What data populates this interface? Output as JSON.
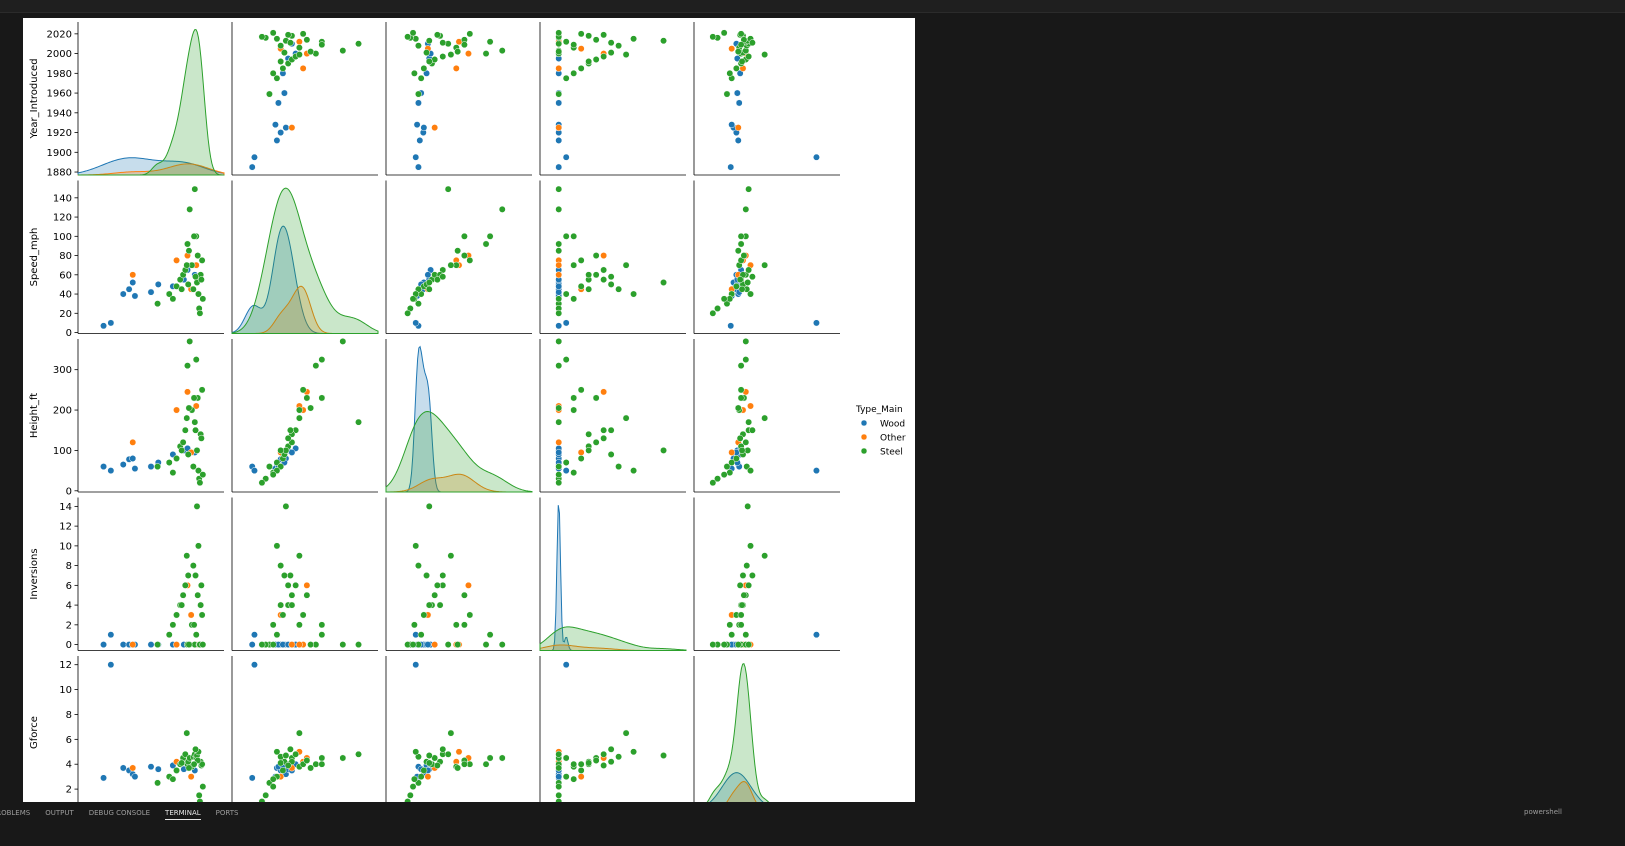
{
  "chart_data": {
    "type": "pairplot",
    "legend_title": "Type_Main",
    "axes": [
      {
        "label": "Year_Introduced",
        "xlim": [
          1850,
          2050
        ],
        "ylim": [
          1877,
          2032
        ],
        "yticks": [
          1880,
          1900,
          1920,
          1940,
          1960,
          1980,
          2000,
          2020
        ]
      },
      {
        "label": "Speed_mph",
        "xlim": [
          -20,
          175
        ],
        "ylim": [
          -1,
          158
        ],
        "yticks": [
          0,
          20,
          40,
          60,
          80,
          100,
          120,
          140
        ]
      },
      {
        "label": "Height_ft",
        "xlim": [
          -60,
          480
        ],
        "ylim": [
          -3,
          376
        ],
        "yticks": [
          0,
          100,
          200,
          300
        ]
      },
      {
        "label": "Inversions",
        "xlim": [
          -2.5,
          17
        ],
        "ylim": [
          -0.6,
          14.9
        ],
        "yticks": [
          0,
          2,
          4,
          6,
          8,
          10,
          12,
          14
        ]
      },
      {
        "label": "Gforce",
        "xlim": [
          -1,
          14.5
        ],
        "ylim": [
          0.4,
          12.7
        ],
        "yticks": [
          2,
          4,
          6,
          8,
          10,
          12
        ]
      }
    ],
    "series": [
      {
        "name": "Wood",
        "color": "#1f77b4",
        "values": [
          [
            1885,
            7,
            60,
            0,
            2.9
          ],
          [
            1895,
            10,
            50,
            1,
            12
          ],
          [
            1912,
            40,
            65,
            0,
            3.7
          ],
          [
            1920,
            45,
            78,
            0,
            3.5
          ],
          [
            1925,
            52,
            80,
            0,
            3.2
          ],
          [
            1928,
            38,
            55,
            0,
            3.0
          ],
          [
            1950,
            42,
            60,
            0,
            3.8
          ],
          [
            1960,
            50,
            70,
            0,
            3.6
          ],
          [
            1980,
            48,
            90,
            0,
            3.9
          ],
          [
            1995,
            55,
            100,
            0,
            3.6
          ],
          [
            2000,
            65,
            105,
            0,
            4.0
          ],
          [
            2010,
            60,
            95,
            0,
            3.5
          ]
        ]
      },
      {
        "name": "Other",
        "color": "#ff7f0e",
        "values": [
          [
            1925,
            60,
            120,
            0,
            3.7
          ],
          [
            1985,
            75,
            200,
            0,
            4.2
          ],
          [
            2000,
            80,
            245,
            6,
            4.5
          ],
          [
            2005,
            45,
            95,
            3,
            3.0
          ],
          [
            2012,
            70,
            210,
            0,
            5.0
          ]
        ]
      },
      {
        "name": "Steel",
        "color": "#2ca02c",
        "values": [
          [
            1959,
            30,
            60,
            0,
            2.5
          ],
          [
            1975,
            40,
            70,
            1,
            3.0
          ],
          [
            1980,
            35,
            45,
            2,
            2.8
          ],
          [
            1985,
            48,
            80,
            3,
            3.5
          ],
          [
            1990,
            55,
            110,
            4,
            4.0
          ],
          [
            1994,
            60,
            120,
            5,
            4.5
          ],
          [
            1997,
            65,
            150,
            6,
            4.8
          ],
          [
            2000,
            92,
            310,
            0,
            4.0
          ],
          [
            2001,
            50,
            90,
            7,
            4.2
          ],
          [
            2003,
            128,
            370,
            0,
            4.5
          ],
          [
            2006,
            70,
            200,
            2,
            3.8
          ],
          [
            2008,
            45,
            60,
            8,
            4.6
          ],
          [
            2010,
            149,
            170,
            0,
            4.8
          ],
          [
            2012,
            100,
            325,
            1,
            4.5
          ],
          [
            2013,
            52,
            100,
            14,
            4.7
          ],
          [
            2015,
            40,
            50,
            10,
            5.0
          ],
          [
            2016,
            25,
            30,
            0,
            1.5
          ],
          [
            2017,
            20,
            20,
            0,
            1.0
          ],
          [
            2018,
            60,
            140,
            4,
            4.2
          ],
          [
            2019,
            55,
            130,
            6,
            3.9
          ],
          [
            2020,
            75,
            250,
            3,
            4.0
          ],
          [
            2021,
            35,
            40,
            0,
            2.2
          ],
          [
            2014,
            80,
            230,
            5,
            4.3
          ],
          [
            1999,
            70,
            180,
            9,
            6.5
          ],
          [
            2009,
            100,
            230,
            2,
            4.0
          ],
          [
            2002,
            85,
            205,
            0,
            3.7
          ],
          [
            1992,
            45,
            100,
            4,
            4.1
          ],
          [
            2011,
            58,
            150,
            7,
            5.2
          ]
        ]
      }
    ]
  },
  "panel_tabs": [
    "PROBLEMS",
    "OUTPUT",
    "DEBUG CONSOLE",
    "TERMINAL",
    "PORTS"
  ],
  "active_tab": 3,
  "terminal_name": "powershell"
}
